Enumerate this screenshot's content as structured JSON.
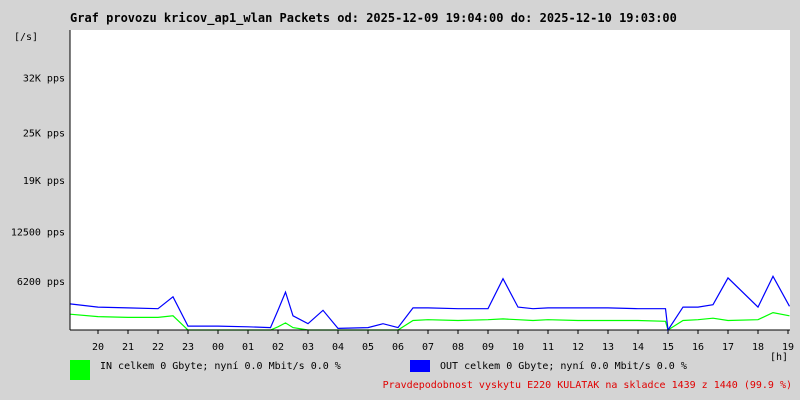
{
  "title": "Graf provozu kricov_ap1_wlan Packets od: 2025-12-09 19:04:00 do: 2025-12-10 19:03:00",
  "legend": {
    "in_label": "IN celkem 0 Gbyte; nyní   0.0 Mbit/s 0.0 %",
    "out_label": "OUT celkem 0 Gbyte; nyní   0.0 Mbit/s 0.0 %",
    "in_color": "#00ff00",
    "out_color": "#0000ff"
  },
  "footer": "Pravdepodobnost vyskytu E220 KULATAK na skladce 1439 z 1440 (99.9 %)",
  "chart_data": {
    "type": "line",
    "ylabel": "[/s]",
    "xlabel": "[h]",
    "y_ticks": [
      {
        "label": "32K pps",
        "value": 32000
      },
      {
        "label": "25K pps",
        "value": 25000
      },
      {
        "label": "19K pps",
        "value": 19000
      },
      {
        "label": "12500 pps",
        "value": 12500
      },
      {
        "label": "6200 pps",
        "value": 6200
      }
    ],
    "ylim": [
      0,
      38000
    ],
    "x_ticks": [
      "20",
      "21",
      "22",
      "23",
      "00",
      "01",
      "02",
      "03",
      "04",
      "05",
      "06",
      "07",
      "08",
      "09",
      "10",
      "11",
      "12",
      "13",
      "14",
      "15",
      "16",
      "17",
      "18",
      "19"
    ],
    "x": [
      "19:04",
      "20:00",
      "21:00",
      "22:00",
      "22:30",
      "23:00",
      "00:00",
      "01:00",
      "01:45",
      "02:00",
      "02:15",
      "02:30",
      "03:00",
      "03:30",
      "04:00",
      "05:00",
      "05:30",
      "06:00",
      "06:30",
      "07:00",
      "08:00",
      "09:00",
      "09:30",
      "10:00",
      "10:30",
      "11:00",
      "12:00",
      "13:00",
      "14:00",
      "14:55",
      "15:00",
      "15:30",
      "16:00",
      "16:30",
      "17:00",
      "18:00",
      "18:30",
      "19:03"
    ],
    "series": [
      {
        "name": "IN",
        "values": [
          2000,
          1700,
          1600,
          1600,
          1800,
          0,
          0,
          0,
          0,
          400,
          900,
          300,
          0,
          0,
          0,
          0,
          0,
          0,
          1200,
          1300,
          1200,
          1300,
          1400,
          1300,
          1200,
          1300,
          1200,
          1200,
          1200,
          1100,
          0,
          1200,
          1300,
          1500,
          1200,
          1300,
          2200,
          1800
        ]
      },
      {
        "name": "OUT",
        "values": [
          3300,
          2900,
          2800,
          2700,
          4200,
          500,
          500,
          400,
          300,
          2500,
          4800,
          1800,
          800,
          2500,
          200,
          300,
          800,
          300,
          2800,
          2800,
          2700,
          2700,
          6500,
          2900,
          2700,
          2800,
          2800,
          2800,
          2700,
          2700,
          0,
          2900,
          2900,
          3200,
          6600,
          2900,
          6800,
          3000
        ]
      }
    ]
  }
}
